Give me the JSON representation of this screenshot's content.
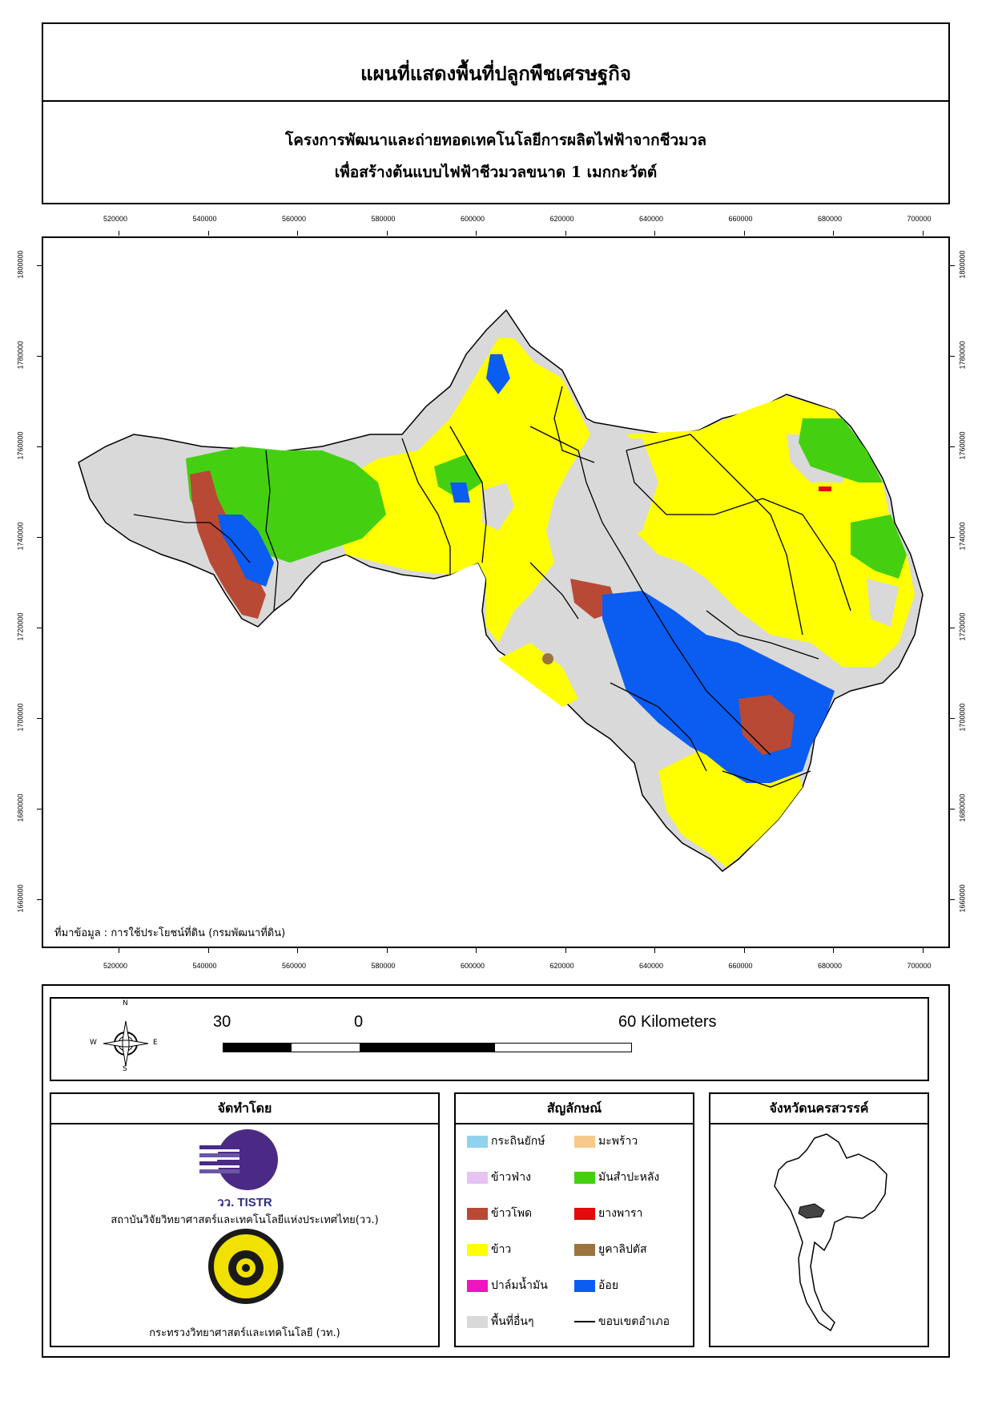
{
  "title": {
    "main": "แผนที่แสดงพื้นที่ปลูกพืชเศรษฐกิจ",
    "line1": "โครงการพัฒนาและถ่ายทอดเทคโนโลยีการผลิตไฟฟ้าจากชีวมวล",
    "line2": "เพื่อสร้างต้นแบบไฟฟ้าชีวมวลขนาด 1 เมกกะวัตต์"
  },
  "map": {
    "x_ticks": [
      "520000",
      "540000",
      "560000",
      "580000",
      "600000",
      "620000",
      "640000",
      "660000",
      "680000",
      "700000"
    ],
    "y_ticks": [
      "1800000",
      "1780000",
      "1760000",
      "1740000",
      "1720000",
      "1700000",
      "1680000",
      "1660000"
    ],
    "source": "ที่มาข้อมูล : การใช้ประโยชน์ที่ดิน  (กรมพัฒนาที่ดิน)"
  },
  "compass": {
    "n": "N",
    "s": "S",
    "e": "E",
    "w": "W"
  },
  "scalebar": {
    "label_left": "30",
    "label_mid": "0",
    "label_right": "60",
    "unit": "Kilometers"
  },
  "producer": {
    "header": "จัดทำโดย",
    "logo1_text": "วว. TISTR",
    "org1": "สถาบันวิจัยวิทยาศาสตร์และเทคโนโลยีแห่งประเทศไทย(วว.)",
    "org2": "กระทรวงวิทยาศาสตร์และเทคโนโลยี (วท.)"
  },
  "legend": {
    "header": "สัญลักษณ์",
    "items": [
      {
        "label": "กระถินยักษ์",
        "color": "#8fd3ee"
      },
      {
        "label": "มะพร้าว",
        "color": "#f7c98a"
      },
      {
        "label": "ข้าวฟ่าง",
        "color": "#e6c3f3"
      },
      {
        "label": "มันสำปะหลัง",
        "color": "#44d011"
      },
      {
        "label": "ข้าวโพด",
        "color": "#b84a35"
      },
      {
        "label": "ยางพารา",
        "color": "#e30b0b"
      },
      {
        "label": "ข้าว",
        "color": "#ffff00"
      },
      {
        "label": "ยูคาลิปตัส",
        "color": "#9b7440"
      },
      {
        "label": "ปาล์มน้ำมัน",
        "color": "#f013c0"
      },
      {
        "label": "อ้อย",
        "color": "#0b5cf0"
      },
      {
        "label": "พื้นที่อื่นๆ",
        "color": "#d9d9d9"
      },
      {
        "label": "ขอบเขตอำเภอ",
        "color": "#000000"
      }
    ]
  },
  "inset": {
    "header": "จังหวัดนครสวรรค์"
  }
}
